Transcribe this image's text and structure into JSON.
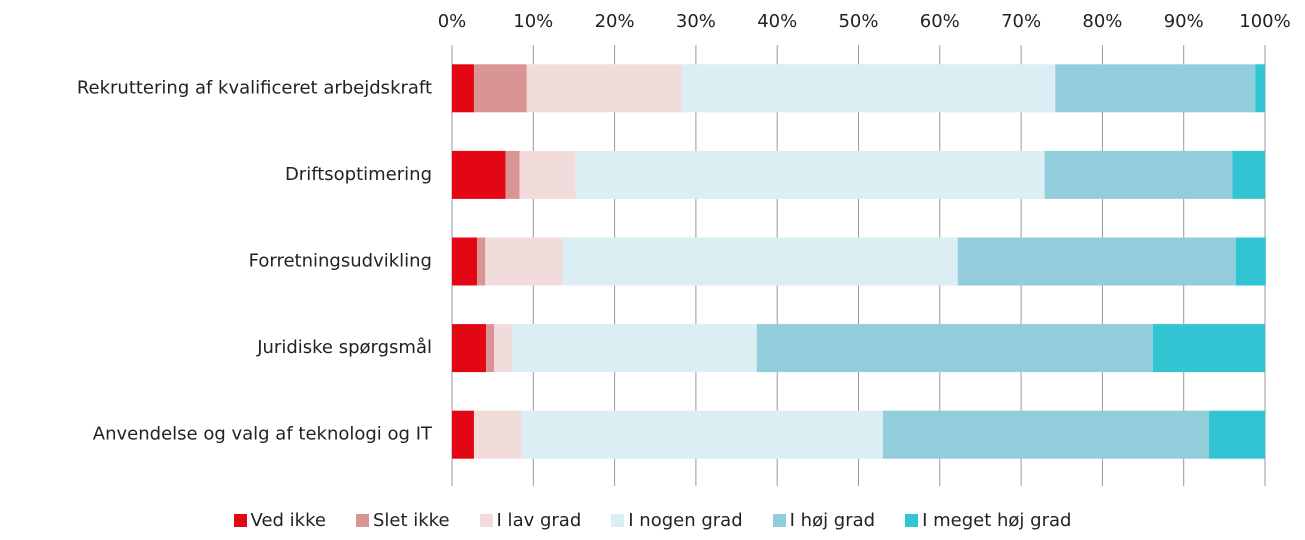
{
  "chart_data": {
    "type": "stacked-barh",
    "categories": [
      "Rekruttering af kvalificeret arbejdskraft",
      "Driftsoptimering",
      "Forretningsudvikling",
      "Juridiske spørgsmål",
      "Anvendelse og valg af teknologi og IT"
    ],
    "series": [
      {
        "name": "Ved ikke",
        "color": "#e30613",
        "values": [
          2.7,
          6.6,
          3.1,
          4.2,
          2.7
        ]
      },
      {
        "name": "Slet ikke",
        "color": "#d99594",
        "values": [
          6.5,
          1.7,
          1.0,
          1.0,
          0
        ]
      },
      {
        "name": "I lav grad",
        "color": "#f2dcdb",
        "values": [
          19.1,
          6.9,
          9.5,
          2.2,
          5.9
        ]
      },
      {
        "name": "I nogen grad",
        "color": "#daeef3",
        "values": [
          45.9,
          57.7,
          48.6,
          30.1,
          44.4
        ]
      },
      {
        "name": "I høj grad",
        "color": "#92cddc",
        "values": [
          24.6,
          23.1,
          34.2,
          48.7,
          40.1
        ]
      },
      {
        "name": "I meget høj grad",
        "color": "#31c5d3",
        "values": [
          1.2,
          4.0,
          3.7,
          13.8,
          6.9
        ]
      }
    ],
    "xlim": [
      0,
      100
    ],
    "xticks": [
      {
        "value": 0,
        "label": "0%"
      },
      {
        "value": 10,
        "label": "10%"
      },
      {
        "value": 20,
        "label": "20%"
      },
      {
        "value": 30,
        "label": "30%"
      },
      {
        "value": 40,
        "label": "40%"
      },
      {
        "value": 50,
        "label": "50%"
      },
      {
        "value": 60,
        "label": "60%"
      },
      {
        "value": 70,
        "label": "70%"
      },
      {
        "value": 80,
        "label": "80%"
      },
      {
        "value": 90,
        "label": "90%"
      },
      {
        "value": 100,
        "label": "100%"
      }
    ],
    "grid": true,
    "legend": "bottom"
  }
}
